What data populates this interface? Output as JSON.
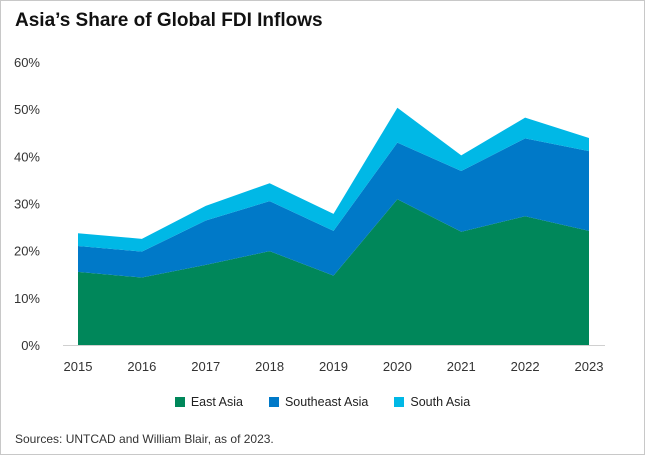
{
  "chart_data": {
    "type": "area",
    "stacked": true,
    "title": "Asia’s Share of Global FDI Inflows",
    "categories": [
      "2015",
      "2016",
      "2017",
      "2018",
      "2019",
      "2020",
      "2021",
      "2022",
      "2023"
    ],
    "ylim": [
      0,
      60
    ],
    "yticks": [
      "0%",
      "10%",
      "20%",
      "30%",
      "40%",
      "50%",
      "60%"
    ],
    "grid": false,
    "legend_position": "bottom",
    "series": [
      {
        "name": "East Asia",
        "color": "#00875A",
        "values": [
          15.5,
          14.3,
          17.0,
          19.9,
          14.7,
          30.9,
          24.0,
          27.3,
          24.2
        ]
      },
      {
        "name": "Southeast Asia",
        "color": "#0079C8",
        "values": [
          5.5,
          5.5,
          9.4,
          10.6,
          9.5,
          12.0,
          12.9,
          16.5,
          16.9
        ]
      },
      {
        "name": "South Asia",
        "color": "#00B8E6",
        "values": [
          2.7,
          2.7,
          3.1,
          3.8,
          3.6,
          7.4,
          3.3,
          4.4,
          2.8
        ]
      }
    ],
    "source": "Sources: UNTCAD and William Blair, as of 2023."
  }
}
